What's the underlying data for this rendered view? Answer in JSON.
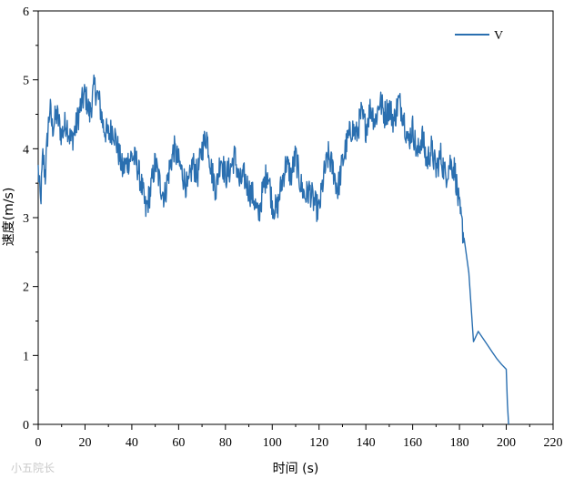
{
  "chart_data": {
    "type": "line",
    "xlabel": "时间 (s)",
    "ylabel": "速度(m/s)",
    "xlim": [
      0,
      220
    ],
    "ylim": [
      0,
      6
    ],
    "x_ticks": [
      0,
      20,
      40,
      60,
      80,
      100,
      120,
      140,
      160,
      180,
      200,
      220
    ],
    "y_ticks": [
      0,
      1,
      2,
      3,
      4,
      5,
      6
    ],
    "grid": false,
    "legend_placement": "top-right",
    "line_color": "#2a6fb0",
    "series": [
      {
        "name": "V",
        "x": [
          0,
          1,
          2,
          3,
          4,
          5,
          6,
          8,
          10,
          12,
          14,
          16,
          18,
          20,
          22,
          24,
          26,
          28,
          30,
          32,
          34,
          36,
          38,
          40,
          42,
          44,
          46,
          48,
          50,
          52,
          54,
          56,
          58,
          60,
          62,
          64,
          66,
          68,
          70,
          72,
          74,
          76,
          78,
          80,
          82,
          84,
          86,
          88,
          90,
          92,
          94,
          96,
          98,
          100,
          102,
          104,
          106,
          108,
          110,
          112,
          114,
          116,
          118,
          120,
          122,
          124,
          126,
          128,
          130,
          132,
          134,
          136,
          138,
          140,
          142,
          144,
          146,
          148,
          150,
          152,
          154,
          156,
          158,
          160,
          162,
          164,
          166,
          168,
          170,
          172,
          174,
          176,
          178,
          180,
          182,
          184,
          186,
          188,
          190,
          192,
          194,
          196,
          198,
          200,
          200.5,
          201
        ],
        "values": [
          3.7,
          3.2,
          3.9,
          3.6,
          4.2,
          4.6,
          4.3,
          4.5,
          4.2,
          4.4,
          4.1,
          4.3,
          4.6,
          4.8,
          4.5,
          4.9,
          4.7,
          4.3,
          4.2,
          4.3,
          4.0,
          3.7,
          3.8,
          3.9,
          3.8,
          3.5,
          3.1,
          3.4,
          3.8,
          3.5,
          3.3,
          3.7,
          4.0,
          3.8,
          3.6,
          3.4,
          3.8,
          3.6,
          4.0,
          4.2,
          3.7,
          3.4,
          3.9,
          3.6,
          3.7,
          3.9,
          3.5,
          3.6,
          3.4,
          3.3,
          3.0,
          3.4,
          3.7,
          3.2,
          3.1,
          3.5,
          3.8,
          3.6,
          3.9,
          3.5,
          3.3,
          3.4,
          3.2,
          3.1,
          3.6,
          3.9,
          3.7,
          3.4,
          3.8,
          4.1,
          4.3,
          4.2,
          4.5,
          4.3,
          4.6,
          4.4,
          4.7,
          4.5,
          4.6,
          4.4,
          4.7,
          4.5,
          4.1,
          4.3,
          3.9,
          4.2,
          3.8,
          4.0,
          3.7,
          3.9,
          3.6,
          3.8,
          3.7,
          3.1,
          2.7,
          2.2,
          1.2,
          1.35,
          1.25,
          1.15,
          1.05,
          0.95,
          0.87,
          0.8,
          0.3,
          0.0
        ]
      }
    ]
  },
  "watermark": "小五院长"
}
